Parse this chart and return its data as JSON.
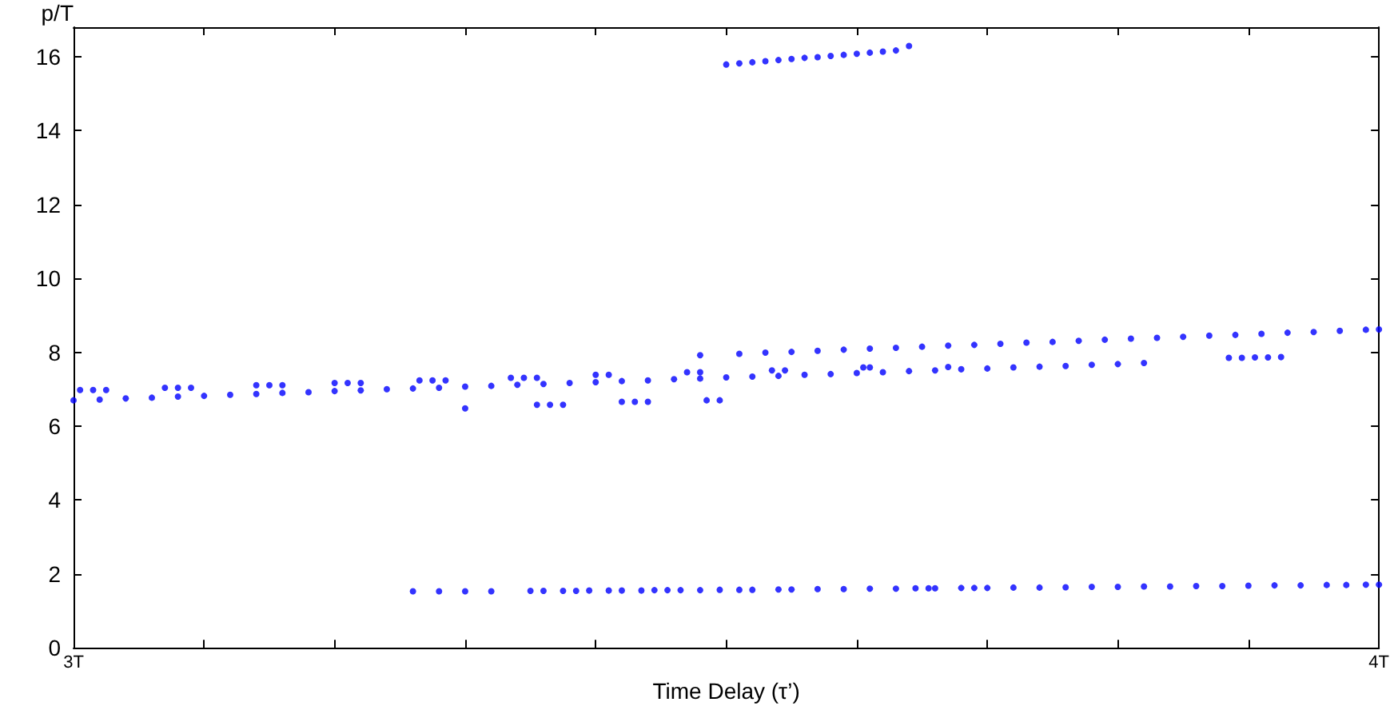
{
  "chart_data": {
    "type": "scatter",
    "xlabel": "Time Delay (τ’)",
    "ylabel": "p/T",
    "xlim": [
      3,
      4
    ],
    "ylim": [
      0,
      16.8
    ],
    "xticks": [
      {
        "value": 3,
        "label": "3T"
      },
      {
        "value": 3.1,
        "label": null
      },
      {
        "value": 3.2,
        "label": null
      },
      {
        "value": 3.3,
        "label": null
      },
      {
        "value": 3.4,
        "label": null
      },
      {
        "value": 3.5,
        "label": null
      },
      {
        "value": 3.6,
        "label": null
      },
      {
        "value": 3.7,
        "label": null
      },
      {
        "value": 3.8,
        "label": null
      },
      {
        "value": 3.9,
        "label": null
      },
      {
        "value": 4,
        "label": "4T"
      }
    ],
    "yticks": [
      0,
      2,
      4,
      6,
      8,
      10,
      12,
      14,
      16
    ],
    "marker": "circle",
    "series": [
      {
        "color": "#0000ff",
        "x": [
          3.0,
          3.02,
          3.04,
          3.06,
          3.08,
          3.1,
          3.12,
          3.14,
          3.16,
          3.18,
          3.2,
          3.22,
          3.24,
          3.26,
          3.28,
          3.3,
          3.32,
          3.34,
          3.36,
          3.38,
          3.4,
          3.42,
          3.44,
          3.46,
          3.48,
          3.5,
          3.52,
          3.54,
          3.56,
          3.58,
          3.6,
          3.62,
          3.64,
          3.66,
          3.68,
          3.7,
          3.72,
          3.74,
          3.76,
          3.78,
          3.8,
          3.82
        ],
        "values": [
          6.7,
          6.72,
          6.75,
          6.77,
          6.8,
          6.82,
          6.85,
          6.87,
          6.9,
          6.92,
          6.95,
          6.97,
          7.0,
          7.02,
          7.04,
          7.07,
          7.09,
          7.12,
          7.14,
          7.17,
          7.19,
          7.22,
          7.24,
          7.27,
          7.29,
          7.32,
          7.34,
          7.36,
          7.39,
          7.41,
          7.44,
          7.46,
          7.49,
          7.51,
          7.54,
          7.56,
          7.59,
          7.61,
          7.63,
          7.66,
          7.68,
          7.71
        ]
      },
      {
        "color": "#0000ff",
        "x": [
          3.48,
          3.51,
          3.53,
          3.55,
          3.57,
          3.59,
          3.61,
          3.63,
          3.65,
          3.67,
          3.69,
          3.71,
          3.73,
          3.75,
          3.77,
          3.79,
          3.81,
          3.83,
          3.85,
          3.87,
          3.89,
          3.91,
          3.93,
          3.95,
          3.97,
          3.99,
          4.0
        ],
        "values": [
          7.92,
          7.96,
          7.99,
          8.01,
          8.04,
          8.07,
          8.1,
          8.12,
          8.15,
          8.18,
          8.2,
          8.23,
          8.26,
          8.28,
          8.31,
          8.34,
          8.37,
          8.39,
          8.42,
          8.45,
          8.47,
          8.5,
          8.53,
          8.55,
          8.58,
          8.61,
          8.62
        ]
      },
      {
        "color": "#0000ff",
        "x": [
          3.5,
          3.51,
          3.52,
          3.53,
          3.54,
          3.55,
          3.56,
          3.57,
          3.58,
          3.59,
          3.6,
          3.61,
          3.62,
          3.63,
          3.64
        ],
        "values": [
          15.79,
          15.82,
          15.85,
          15.88,
          15.91,
          15.94,
          15.97,
          15.99,
          16.02,
          16.05,
          16.08,
          16.11,
          16.14,
          16.17,
          16.29
        ]
      },
      {
        "color": "#0000ff",
        "x": [
          3.26,
          3.28,
          3.3,
          3.32,
          3.35,
          3.36,
          3.375,
          3.385,
          3.395,
          3.41,
          3.42,
          3.435,
          3.445,
          3.455,
          3.465,
          3.48,
          3.495,
          3.51,
          3.52,
          3.54,
          3.55,
          3.57,
          3.59,
          3.61,
          3.63,
          3.645,
          3.655,
          3.66,
          3.68,
          3.69,
          3.7,
          3.72,
          3.74,
          3.76,
          3.78,
          3.8,
          3.82,
          3.84,
          3.86,
          3.88,
          3.9,
          3.92,
          3.94,
          3.96,
          3.975,
          3.99,
          4.0
        ],
        "values": [
          1.53,
          1.53,
          1.53,
          1.53,
          1.54,
          1.54,
          1.54,
          1.54,
          1.55,
          1.55,
          1.55,
          1.55,
          1.56,
          1.56,
          1.56,
          1.56,
          1.57,
          1.57,
          1.57,
          1.58,
          1.58,
          1.59,
          1.59,
          1.6,
          1.6,
          1.61,
          1.61,
          1.61,
          1.62,
          1.62,
          1.62,
          1.63,
          1.63,
          1.64,
          1.65,
          1.65,
          1.66,
          1.66,
          1.67,
          1.67,
          1.68,
          1.69,
          1.69,
          1.7,
          1.7,
          1.71,
          1.71
        ]
      },
      {
        "color": "#0000ff",
        "x": [
          3.005,
          3.015,
          3.025,
          3.07,
          3.08,
          3.09,
          3.14,
          3.15,
          3.16,
          3.2,
          3.21,
          3.22,
          3.265,
          3.275,
          3.285,
          3.335,
          3.345,
          3.355,
          3.4,
          3.41,
          3.47,
          3.48,
          3.535,
          3.545,
          3.605,
          3.61,
          3.67
        ],
        "values": [
          6.98,
          6.98,
          6.98,
          7.04,
          7.04,
          7.04,
          7.11,
          7.11,
          7.11,
          7.17,
          7.17,
          7.17,
          7.24,
          7.24,
          7.24,
          7.31,
          7.31,
          7.31,
          7.39,
          7.39,
          7.46,
          7.46,
          7.51,
          7.51,
          7.59,
          7.59,
          7.6
        ]
      },
      {
        "color": "#0000ff",
        "x": [
          3.3,
          3.355,
          3.365,
          3.375,
          3.42,
          3.43,
          3.44,
          3.485,
          3.495
        ],
        "values": [
          6.48,
          6.58,
          6.58,
          6.58,
          6.66,
          6.66,
          6.66,
          6.7,
          6.7
        ]
      },
      {
        "color": "#0000ff",
        "x": [
          3.885,
          3.895,
          3.905,
          3.915,
          3.925
        ],
        "values": [
          7.85,
          7.85,
          7.86,
          7.86,
          7.87
        ]
      }
    ]
  }
}
